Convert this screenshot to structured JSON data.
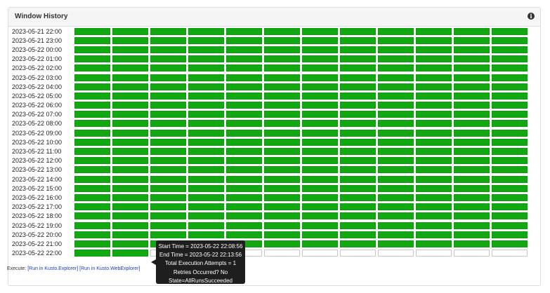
{
  "panel": {
    "title": "Window History",
    "info_icon": "info-icon"
  },
  "grid": {
    "columns": 12,
    "rows": [
      {
        "label": "2023-05-21 22:00",
        "succeeded": 12
      },
      {
        "label": "2023-05-21 23:00",
        "succeeded": 12
      },
      {
        "label": "2023-05-22 00:00",
        "succeeded": 12
      },
      {
        "label": "2023-05-22 01:00",
        "succeeded": 12
      },
      {
        "label": "2023-05-22 02:00",
        "succeeded": 12
      },
      {
        "label": "2023-05-22 03:00",
        "succeeded": 12
      },
      {
        "label": "2023-05-22 04:00",
        "succeeded": 12
      },
      {
        "label": "2023-05-22 05:00",
        "succeeded": 12
      },
      {
        "label": "2023-05-22 06:00",
        "succeeded": 12
      },
      {
        "label": "2023-05-22 07:00",
        "succeeded": 12
      },
      {
        "label": "2023-05-22 08:00",
        "succeeded": 12
      },
      {
        "label": "2023-05-22 09:00",
        "succeeded": 12
      },
      {
        "label": "2023-05-22 10:00",
        "succeeded": 12
      },
      {
        "label": "2023-05-22 11:00",
        "succeeded": 12
      },
      {
        "label": "2023-05-22 12:00",
        "succeeded": 12
      },
      {
        "label": "2023-05-22 13:00",
        "succeeded": 12
      },
      {
        "label": "2023-05-22 14:00",
        "succeeded": 12
      },
      {
        "label": "2023-05-22 15:00",
        "succeeded": 12
      },
      {
        "label": "2023-05-22 16:00",
        "succeeded": 12
      },
      {
        "label": "2023-05-22 17:00",
        "succeeded": 12
      },
      {
        "label": "2023-05-22 18:00",
        "succeeded": 12
      },
      {
        "label": "2023-05-22 19:00",
        "succeeded": 12
      },
      {
        "label": "2023-05-22 20:00",
        "succeeded": 12
      },
      {
        "label": "2023-05-22 21:00",
        "succeeded": 12
      },
      {
        "label": "2023-05-22 22:00",
        "succeeded": 2
      }
    ],
    "colors": {
      "succeeded": "#12a812",
      "empty": "#ffffff"
    }
  },
  "tooltip": {
    "lines": [
      "Start Time = 2023-05-22 22:08:56",
      "End Time = 2023-05-22 22:13:56",
      "Total Execution Attempts = 1",
      "Retries Occurred? No",
      "State=AllRunsSucceeded"
    ]
  },
  "footer": {
    "prefix": "Execute: ",
    "links": [
      "[Run in Kusto.Explorer]",
      "[Run in Kusto.WebExplorer]"
    ]
  }
}
